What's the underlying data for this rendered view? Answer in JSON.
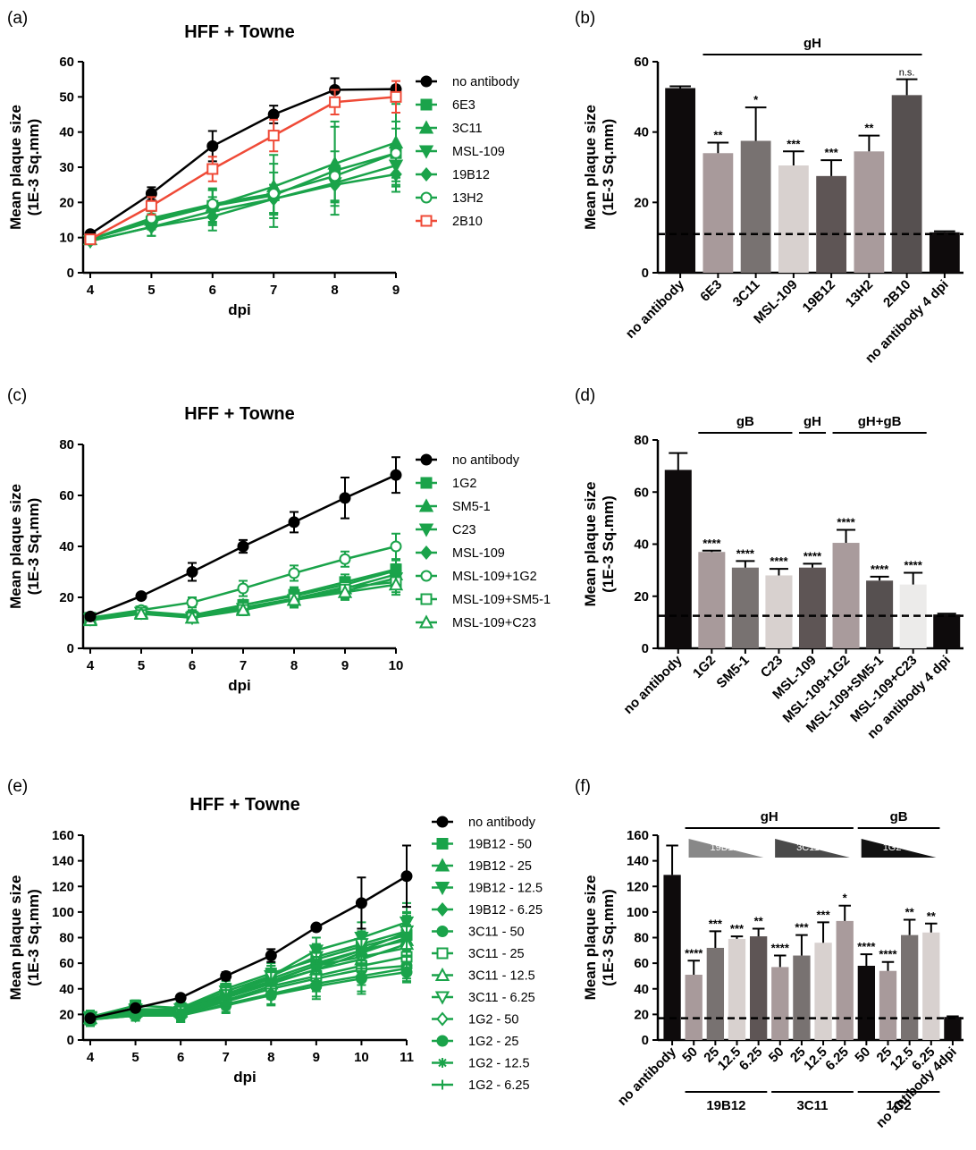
{
  "panels": {
    "a": "(a)",
    "b": "(b)",
    "c": "(c)",
    "d": "(d)",
    "e": "(e)",
    "f": "(f)"
  },
  "colors": {
    "black": "#000000",
    "green": "#1aa34a",
    "red": "#ef4a37"
  },
  "chart_data": [
    {
      "id": "a",
      "type": "line",
      "title": "HFF + Towne",
      "xlabel": "dpi",
      "ylabel": [
        "Mean plaque size",
        "(1E-3 Sq.mm)"
      ],
      "x": [
        4,
        5,
        6,
        7,
        8,
        9
      ],
      "xlim": [
        4,
        9
      ],
      "ylim": [
        0,
        60
      ],
      "yticks": [
        0,
        10,
        20,
        30,
        40,
        50,
        60
      ],
      "series": [
        {
          "name": "no antibody",
          "marker": "circle",
          "color": "#000000",
          "values": [
            11,
            22.5,
            36,
            45,
            52,
            52.2
          ],
          "err": [
            0.8,
            1.8,
            4.3,
            2.5,
            3.3,
            1.0
          ]
        },
        {
          "name": "6E3",
          "marker": "square",
          "color": "#1aa34a",
          "values": [
            9.5,
            14.5,
            19,
            22,
            29,
            34
          ],
          "err": [
            0.8,
            2.2,
            4.5,
            9,
            12.5,
            9
          ]
        },
        {
          "name": "3C11",
          "marker": "triangle-up",
          "color": "#1aa34a",
          "values": [
            9.5,
            15,
            19,
            24.5,
            31,
            37
          ],
          "err": [
            0.8,
            2.5,
            5,
            9,
            12,
            11
          ]
        },
        {
          "name": "MSL-109",
          "marker": "triangle-down",
          "color": "#1aa34a",
          "values": [
            9,
            13,
            17.5,
            21,
            25.5,
            30.5
          ],
          "err": [
            0.8,
            2.5,
            4,
            4,
            5,
            6
          ]
        },
        {
          "name": "19B12",
          "marker": "diamond",
          "color": "#1aa34a",
          "values": [
            9,
            13,
            16,
            21,
            25,
            28
          ],
          "err": [
            0.8,
            2.5,
            4,
            4,
            5,
            5
          ]
        },
        {
          "name": "13H2",
          "marker": "circle-open",
          "color": "#1aa34a",
          "values": [
            9.5,
            15.5,
            19.5,
            22.5,
            27.5,
            34
          ],
          "err": [
            0.8,
            2.5,
            4,
            6,
            7,
            7
          ]
        },
        {
          "name": "2B10",
          "marker": "square-open",
          "color": "#ef4a37",
          "values": [
            9.5,
            19,
            29.5,
            39,
            48.5,
            50
          ],
          "err": [
            0.8,
            2.5,
            3.5,
            4.5,
            3.5,
            4.5
          ]
        }
      ]
    },
    {
      "id": "b",
      "type": "bar",
      "ylabel": [
        "Mean plaque size",
        "(1E-3 Sq.mm)"
      ],
      "ylim": [
        0,
        60
      ],
      "yticks": [
        0,
        20,
        40,
        60
      ],
      "reference_line": 11,
      "categories": [
        "no antibody",
        "6E3",
        "3C11",
        "MSL-109",
        "19B12",
        "13H2",
        "2B10",
        "no antibody 4 dpi"
      ],
      "values": [
        52.5,
        34,
        37.5,
        30.5,
        27.5,
        34.5,
        50.5,
        11.5
      ],
      "err": [
        0.5,
        3,
        9.5,
        4,
        4.5,
        4.5,
        4.5,
        0.3
      ],
      "significance": [
        "",
        "**",
        "*",
        "***",
        "***",
        "**",
        "n.s.",
        ""
      ],
      "fills": [
        "#0e0b0c",
        "#a89a9b",
        "#787271",
        "#d8d1cf",
        "#5e5555",
        "#a99b9c",
        "#565050",
        "#0e0b0c"
      ],
      "groups": [
        {
          "label": "gH",
          "from": 1,
          "to": 6
        }
      ]
    },
    {
      "id": "c",
      "type": "line",
      "title": "HFF + Towne",
      "xlabel": "dpi",
      "ylabel": [
        "Mean plaque size",
        "(1E-3 Sq.mm)"
      ],
      "x": [
        4,
        5,
        6,
        7,
        8,
        9,
        10
      ],
      "xlim": [
        4,
        10
      ],
      "ylim": [
        0,
        80
      ],
      "yticks": [
        0,
        20,
        40,
        60,
        80
      ],
      "series": [
        {
          "name": "no antibody",
          "marker": "circle",
          "color": "#000000",
          "values": [
            12.5,
            20.5,
            30,
            40,
            49.5,
            59,
            68
          ],
          "err": [
            1,
            1,
            3.5,
            2.5,
            4,
            8,
            7
          ]
        },
        {
          "name": "1G2",
          "marker": "square",
          "color": "#1aa34a",
          "values": [
            12,
            14.5,
            12.5,
            17,
            21,
            26,
            31
          ],
          "err": [
            1,
            1.5,
            2,
            2,
            3,
            3,
            4
          ]
        },
        {
          "name": "SM5-1",
          "marker": "triangle-up",
          "color": "#1aa34a",
          "values": [
            11.5,
            14,
            12,
            15.5,
            19,
            23.5,
            29
          ],
          "err": [
            1,
            1.5,
            2,
            2,
            3,
            3,
            4
          ]
        },
        {
          "name": "C23",
          "marker": "triangle-down",
          "color": "#1aa34a",
          "values": [
            11.5,
            14,
            12,
            15.5,
            19,
            22.5,
            27.5
          ],
          "err": [
            1,
            1.5,
            2,
            2,
            3,
            3,
            4
          ]
        },
        {
          "name": "MSL-109",
          "marker": "diamond",
          "color": "#1aa34a",
          "values": [
            12,
            14.5,
            13,
            17,
            20.5,
            25,
            30.5
          ],
          "err": [
            1,
            1.5,
            2,
            2,
            3,
            3,
            4
          ]
        },
        {
          "name": "MSL-109+1G2",
          "marker": "circle-open",
          "color": "#1aa34a",
          "values": [
            12,
            15,
            18,
            23.5,
            29.5,
            35,
            40
          ],
          "err": [
            1,
            1.5,
            2,
            3,
            3,
            3,
            5
          ]
        },
        {
          "name": "MSL-109+SM5-1",
          "marker": "square-open",
          "color": "#1aa34a",
          "values": [
            11.5,
            14,
            12.5,
            16,
            19.5,
            24,
            26
          ],
          "err": [
            1,
            1.5,
            2,
            2,
            3,
            3,
            4
          ]
        },
        {
          "name": "MSL-109+C23",
          "marker": "triangle-open",
          "color": "#1aa34a",
          "values": [
            11,
            13.5,
            12,
            15,
            19,
            22,
            25
          ],
          "err": [
            1,
            1.5,
            2,
            2,
            3,
            3,
            4
          ]
        }
      ]
    },
    {
      "id": "d",
      "type": "bar",
      "ylabel": [
        "Mean plaque size",
        "(1E-3 Sq.mm)"
      ],
      "ylim": [
        0,
        80
      ],
      "yticks": [
        0,
        20,
        40,
        60,
        80
      ],
      "reference_line": 12.5,
      "categories": [
        "no antibody",
        "1G2",
        "SM5-1",
        "C23",
        "MSL-109",
        "MSL-109+1G2",
        "MSL-109+SM5-1",
        "MSL-109+C23",
        "no antibody 4 dpi"
      ],
      "values": [
        68.5,
        37,
        31,
        28,
        31,
        40.5,
        26,
        24.5,
        13
      ],
      "err": [
        6.5,
        0.5,
        2.5,
        2.5,
        1.5,
        5,
        1.5,
        4.5,
        0.3
      ],
      "significance": [
        "",
        "****",
        "****",
        "****",
        "****",
        "****",
        "****",
        "****",
        ""
      ],
      "fills": [
        "#0e0b0c",
        "#a89a9b",
        "#787271",
        "#d8d1cf",
        "#5e5555",
        "#a99b9c",
        "#565050",
        "#ecebea",
        "#0e0b0c"
      ],
      "groups": [
        {
          "label": "gB",
          "from": 1,
          "to": 3
        },
        {
          "label": "gH",
          "from": 4,
          "to": 4
        },
        {
          "label": "gH+gB",
          "from": 5,
          "to": 7
        }
      ]
    },
    {
      "id": "e",
      "type": "line",
      "title": "HFF + Towne",
      "xlabel": "dpi",
      "ylabel": [
        "Mean plaque size",
        "(1E-3 Sq.mm)"
      ],
      "x": [
        4,
        5,
        6,
        7,
        8,
        9,
        10,
        11
      ],
      "xlim": [
        4,
        11
      ],
      "ylim": [
        0,
        160
      ],
      "yticks": [
        0,
        20,
        40,
        60,
        80,
        100,
        120,
        140,
        160
      ],
      "series": [
        {
          "name": "no antibody",
          "marker": "circle",
          "color": "#000000",
          "values": [
            17,
            25,
            33,
            50,
            66,
            88,
            107,
            128
          ],
          "err": [
            2,
            2,
            2,
            3,
            5,
            2,
            20,
            24
          ]
        },
        {
          "name": "19B12 - 50",
          "marker": "square",
          "color": "#1aa34a",
          "values": [
            18,
            27,
            25,
            40,
            52,
            63,
            73,
            82
          ],
          "err": [
            5,
            4,
            5,
            6,
            8,
            10,
            12,
            15
          ]
        },
        {
          "name": "19B12 - 25",
          "marker": "triangle-up",
          "color": "#1aa34a",
          "values": [
            17,
            24,
            23,
            36,
            48,
            60,
            70,
            78
          ],
          "err": [
            5,
            4,
            5,
            6,
            8,
            10,
            12,
            15
          ]
        },
        {
          "name": "19B12 - 12.5",
          "marker": "triangle-down",
          "color": "#1aa34a",
          "values": [
            17,
            23,
            22,
            35,
            50,
            70,
            80,
            92
          ],
          "err": [
            5,
            4,
            5,
            6,
            8,
            10,
            12,
            15
          ]
        },
        {
          "name": "19B12 - 6.25",
          "marker": "diamond",
          "color": "#1aa34a",
          "values": [
            17,
            22,
            22,
            34,
            46,
            58,
            65,
            72
          ],
          "err": [
            5,
            4,
            5,
            6,
            8,
            10,
            12,
            15
          ]
        },
        {
          "name": "3C11 - 50",
          "marker": "circle",
          "color": "#1aa34a",
          "values": [
            16,
            20,
            20,
            30,
            40,
            48,
            55,
            58
          ],
          "err": [
            5,
            4,
            5,
            6,
            8,
            10,
            12,
            10
          ]
        },
        {
          "name": "3C11 - 25",
          "marker": "square-open",
          "color": "#1aa34a",
          "values": [
            16,
            21,
            21,
            31,
            42,
            50,
            58,
            65
          ],
          "err": [
            5,
            4,
            5,
            6,
            8,
            10,
            12,
            12
          ]
        },
        {
          "name": "3C11 - 12.5",
          "marker": "triangle-open",
          "color": "#1aa34a",
          "values": [
            17,
            22,
            22,
            33,
            44,
            55,
            63,
            75
          ],
          "err": [
            5,
            4,
            5,
            6,
            8,
            10,
            12,
            15
          ]
        },
        {
          "name": "3C11 - 6.25",
          "marker": "triangle-down-open",
          "color": "#1aa34a",
          "values": [
            18,
            24,
            24,
            38,
            50,
            65,
            75,
            85
          ],
          "err": [
            5,
            4,
            5,
            6,
            8,
            10,
            12,
            15
          ]
        },
        {
          "name": "1G2 - 50",
          "marker": "diamond-open",
          "color": "#1aa34a",
          "values": [
            16,
            19,
            19,
            28,
            36,
            44,
            50,
            56
          ],
          "err": [
            5,
            4,
            5,
            6,
            8,
            10,
            12,
            10
          ]
        },
        {
          "name": "1G2 - 25",
          "marker": "circle",
          "color": "#1aa34a",
          "values": [
            16,
            19,
            19,
            27,
            35,
            42,
            48,
            53
          ],
          "err": [
            5,
            4,
            5,
            6,
            8,
            10,
            12,
            8
          ]
        },
        {
          "name": "1G2 - 12.5",
          "marker": "star",
          "color": "#1aa34a",
          "values": [
            16,
            20,
            21,
            33,
            45,
            55,
            68,
            80
          ],
          "err": [
            5,
            4,
            5,
            6,
            8,
            10,
            12,
            15
          ]
        },
        {
          "name": "1G2 - 6.25",
          "marker": "plus",
          "color": "#1aa34a",
          "values": [
            17,
            21,
            22,
            35,
            46,
            58,
            70,
            84
          ],
          "err": [
            5,
            4,
            5,
            6,
            8,
            10,
            12,
            15
          ]
        }
      ]
    },
    {
      "id": "f",
      "type": "bar",
      "ylabel": [
        "Mean plaque size",
        "(1E-3 Sq.mm)"
      ],
      "ylim": [
        0,
        160
      ],
      "yticks": [
        0,
        20,
        40,
        60,
        80,
        100,
        120,
        140,
        160
      ],
      "reference_line": 17,
      "categories": [
        "no antibody",
        "50",
        "25",
        "12.5",
        "6.25",
        "50",
        "25",
        "12.5",
        "6.25",
        "50",
        "25",
        "12.5",
        "6.25",
        "no antibody 4dpi"
      ],
      "values": [
        129,
        51,
        72,
        79,
        81,
        57,
        66,
        76,
        93,
        58,
        54,
        82,
        84,
        18
      ],
      "err": [
        23,
        11,
        13,
        2,
        6,
        9,
        16,
        16,
        12,
        9,
        7,
        12,
        7,
        0.5
      ],
      "significance": [
        "",
        "****",
        "***",
        "***",
        "**",
        "****",
        "***",
        "***",
        "*",
        "****",
        "****",
        "**",
        "**",
        ""
      ],
      "fills": [
        "#0e0b0c",
        "#a89a9b",
        "#787271",
        "#d8d1cf",
        "#5e5555",
        "#a89a9b",
        "#787271",
        "#d8d1cf",
        "#a99b9c",
        "#0e0b0c",
        "#a89a9b",
        "#787271",
        "#d8d1cf",
        "#0e0b0c"
      ],
      "groups": [
        {
          "label": "gH",
          "from": 1,
          "to": 8
        },
        {
          "label": "gB",
          "from": 9,
          "to": 12
        }
      ],
      "subgroups": [
        {
          "label": "19B12",
          "from": 1,
          "to": 4
        },
        {
          "label": "3C11",
          "from": 5,
          "to": 8
        },
        {
          "label": "1G2",
          "from": 9,
          "to": 12
        }
      ],
      "gradients": [
        {
          "label": "19B12",
          "color": "#888888",
          "from": 1,
          "to": 4
        },
        {
          "label": "3C11",
          "color": "#4a4a4a",
          "from": 5,
          "to": 8
        },
        {
          "label": "1G2",
          "color": "#111111",
          "from": 9,
          "to": 12
        }
      ]
    }
  ]
}
